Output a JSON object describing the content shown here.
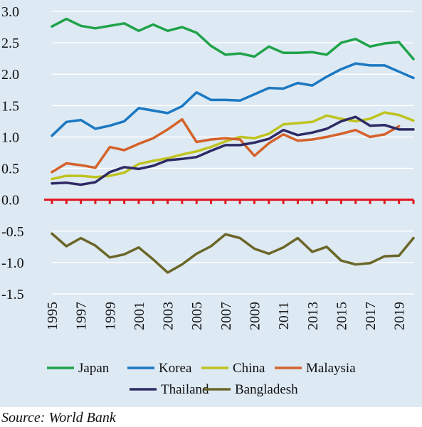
{
  "chart_data": {
    "type": "line",
    "title": "",
    "xlabel": "",
    "ylabel": "",
    "x": [
      1995,
      1996,
      1997,
      1998,
      1999,
      2000,
      2001,
      2002,
      2003,
      2004,
      2005,
      2006,
      2007,
      2008,
      2009,
      2010,
      2011,
      2012,
      2013,
      2014,
      2015,
      2016,
      2017,
      2018,
      2019,
      2020
    ],
    "x_tick_labels": [
      "1995",
      "1997",
      "1999",
      "2001",
      "2003",
      "2005",
      "2007",
      "2009",
      "2011",
      "2013",
      "2015",
      "2017",
      "2019"
    ],
    "x_tick_values": [
      1995,
      1997,
      1999,
      2001,
      2003,
      2005,
      2007,
      2009,
      2011,
      2013,
      2015,
      2017,
      2019
    ],
    "y_tick_labels": [
      "3.0",
      "2.5",
      "2.0",
      "1.5",
      "1.0",
      "0.5",
      "0.0",
      "-0.5",
      "-1.0",
      "-1.5"
    ],
    "y_tick_values": [
      3.0,
      2.5,
      2.0,
      1.5,
      1.0,
      0.5,
      0.0,
      -0.5,
      -1.0,
      -1.5
    ],
    "ylim": [
      -1.5,
      3.0
    ],
    "xlim": [
      1995,
      2020
    ],
    "grid": "horizontal",
    "zero_line_color": "#e0141b",
    "legend_placement": "bottom",
    "series": [
      {
        "name": "Japan",
        "color": "#1fa34a",
        "values": [
          2.76,
          2.88,
          2.77,
          2.73,
          2.77,
          2.81,
          2.69,
          2.79,
          2.69,
          2.75,
          2.66,
          2.45,
          2.31,
          2.33,
          2.28,
          2.44,
          2.34,
          2.34,
          2.35,
          2.31,
          2.5,
          2.56,
          2.44,
          2.49,
          2.51,
          2.24
        ]
      },
      {
        "name": "Korea",
        "color": "#1b78c2",
        "values": [
          1.02,
          1.24,
          1.27,
          1.13,
          1.18,
          1.25,
          1.46,
          1.42,
          1.38,
          1.49,
          1.71,
          1.59,
          1.59,
          1.58,
          1.68,
          1.78,
          1.77,
          1.86,
          1.82,
          1.96,
          2.08,
          2.17,
          2.14,
          2.14,
          2.04,
          1.94
        ]
      },
      {
        "name": "China",
        "color": "#bfc31f",
        "values": [
          0.33,
          0.38,
          0.38,
          0.36,
          0.38,
          0.43,
          0.57,
          0.62,
          0.66,
          0.72,
          0.77,
          0.84,
          0.93,
          1.0,
          0.98,
          1.05,
          1.2,
          1.22,
          1.24,
          1.34,
          1.29,
          1.25,
          1.29,
          1.39,
          1.35,
          1.26
        ]
      },
      {
        "name": "Malaysia",
        "color": "#d4622a",
        "values": [
          0.44,
          0.58,
          0.55,
          0.51,
          0.84,
          0.79,
          0.89,
          0.98,
          1.12,
          1.28,
          0.92,
          0.96,
          0.98,
          0.96,
          0.7,
          0.9,
          1.04,
          0.94,
          0.96,
          1.0,
          1.05,
          1.11,
          1.0,
          1.04,
          1.17,
          null
        ]
      },
      {
        "name": "Thailand",
        "color": "#2e2a64",
        "values": [
          0.26,
          0.27,
          0.24,
          0.28,
          0.44,
          0.52,
          0.49,
          0.54,
          0.63,
          0.65,
          0.68,
          0.78,
          0.87,
          0.87,
          0.91,
          0.97,
          1.11,
          1.03,
          1.07,
          1.13,
          1.25,
          1.32,
          1.18,
          1.19,
          1.12,
          1.12
        ]
      },
      {
        "name": "Bangladesh",
        "color": "#6b6628",
        "values": [
          -0.54,
          -0.74,
          -0.61,
          -0.73,
          -0.92,
          -0.87,
          -0.76,
          -0.95,
          -1.16,
          -1.03,
          -0.86,
          -0.74,
          -0.55,
          -0.61,
          -0.78,
          -0.86,
          -0.76,
          -0.61,
          -0.83,
          -0.75,
          -0.97,
          -1.03,
          -1.01,
          -0.9,
          -0.89,
          -0.61
        ]
      }
    ]
  },
  "source_text": "Source: World Bank"
}
